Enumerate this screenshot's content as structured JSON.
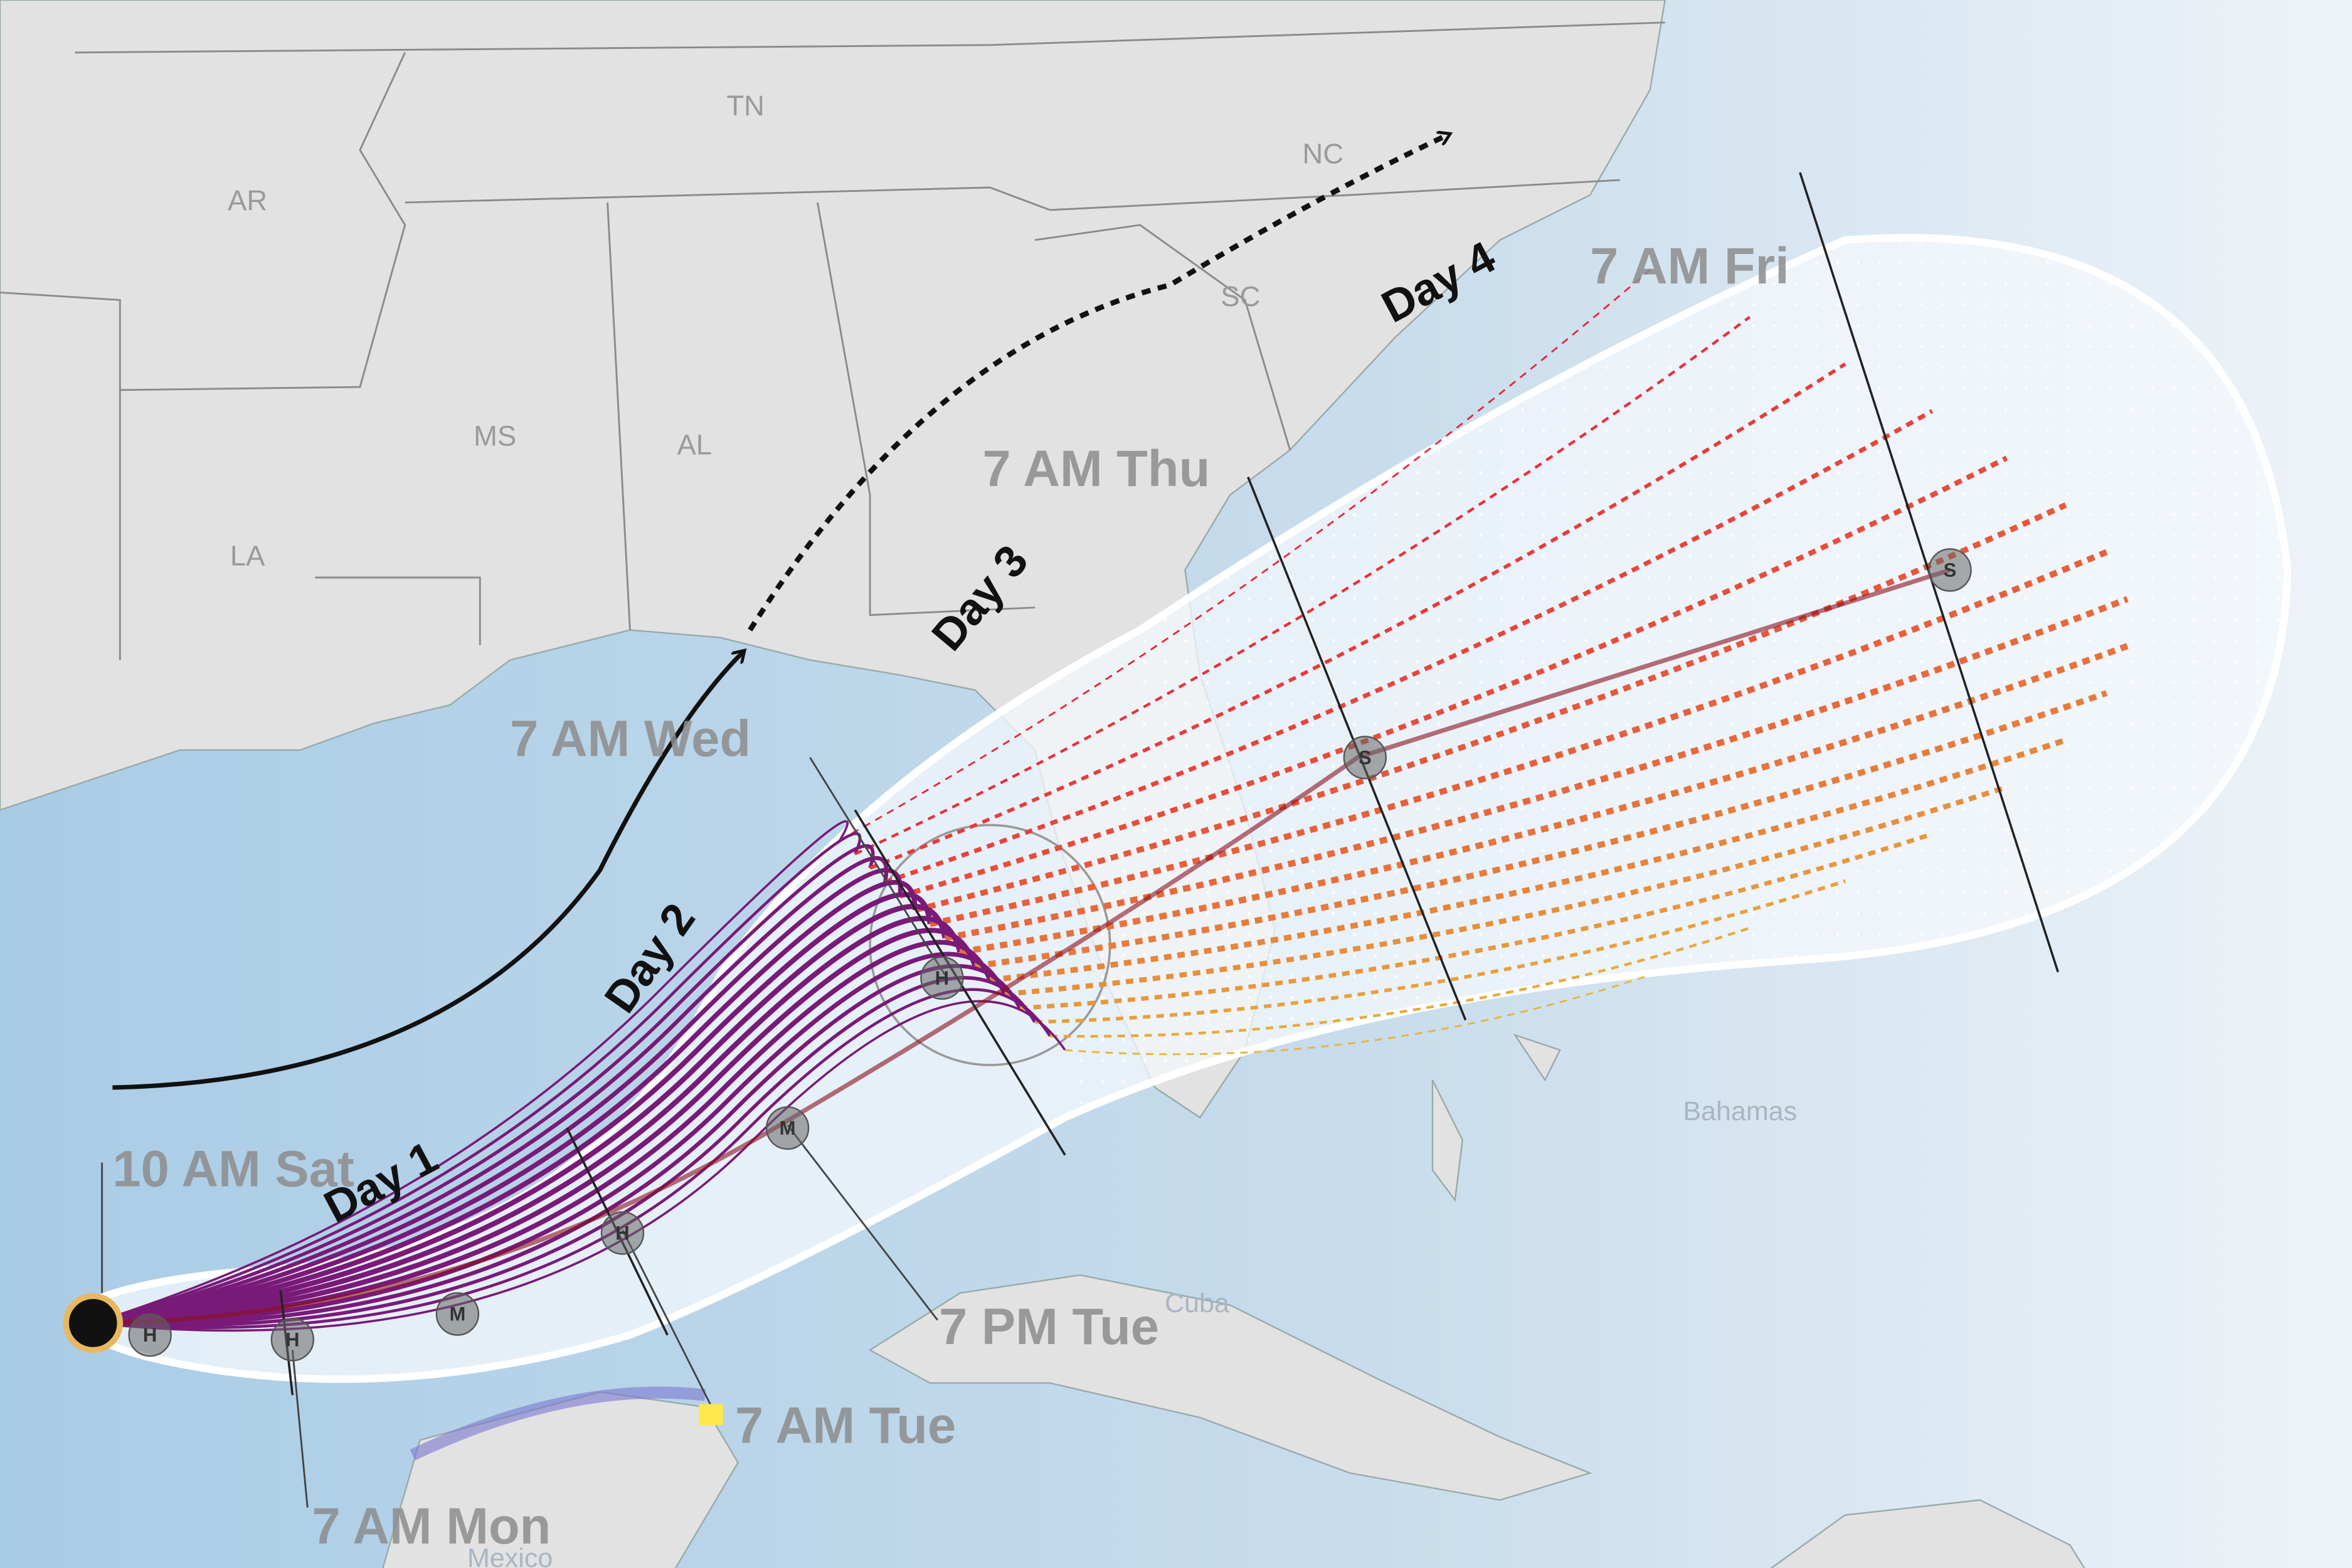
{
  "states": [
    "AR",
    "TN",
    "NC",
    "SC",
    "MS",
    "AL",
    "LA"
  ],
  "places": [
    "Bahamas",
    "Cuba",
    "Mexico"
  ],
  "times": [
    "10 AM Sat",
    "7 AM Mon",
    "7 AM Tue",
    "7 PM Tue",
    "7 AM Wed",
    "7 AM Thu",
    "7 AM Fri"
  ],
  "days": [
    "Day 1",
    "Day 2",
    "Day 3",
    "Day 4"
  ],
  "markers": [
    "H",
    "H",
    "M",
    "H",
    "M",
    "H",
    "S",
    "S"
  ]
}
